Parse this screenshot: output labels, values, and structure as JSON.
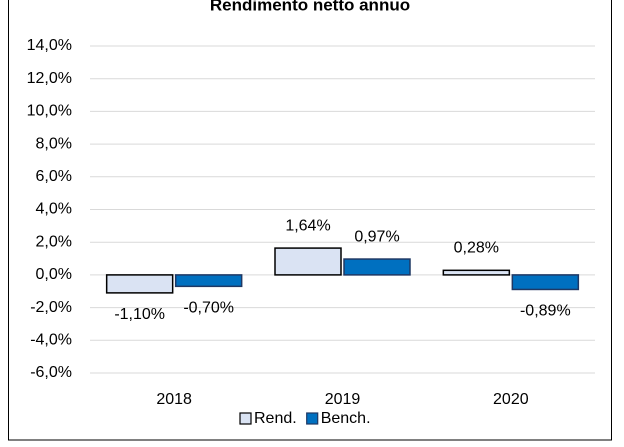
{
  "chart_data": {
    "type": "bar",
    "title": "Rendimento netto annuo",
    "categories": [
      "2018",
      "2019",
      "2020"
    ],
    "series": [
      {
        "name": "Rend.",
        "color": "#dae3f3",
        "values": [
          -1.1,
          1.64,
          0.28
        ],
        "value_labels": [
          "-1,10%",
          "1,64%",
          "0,28%"
        ]
      },
      {
        "name": "Bench.",
        "color": "#0070c0",
        "values": [
          -0.7,
          0.97,
          -0.89
        ],
        "value_labels": [
          "-0,70%",
          "0,97%",
          "-0,89%"
        ]
      }
    ],
    "ylim": [
      -6,
      14
    ],
    "yticks": [
      {
        "value": -6,
        "label": "-6,0%"
      },
      {
        "value": -4,
        "label": "-4,0%"
      },
      {
        "value": -2,
        "label": "-2,0%"
      },
      {
        "value": 0,
        "label": "0,0%"
      },
      {
        "value": 2,
        "label": "2,0%"
      },
      {
        "value": 4,
        "label": "4,0%"
      },
      {
        "value": 6,
        "label": "6,0%"
      },
      {
        "value": 8,
        "label": "8,0%"
      },
      {
        "value": 10,
        "label": "10,0%"
      },
      {
        "value": 12,
        "label": "12,0%"
      },
      {
        "value": 14,
        "label": "14,0%"
      }
    ],
    "grid": true,
    "legend": "bottom"
  }
}
